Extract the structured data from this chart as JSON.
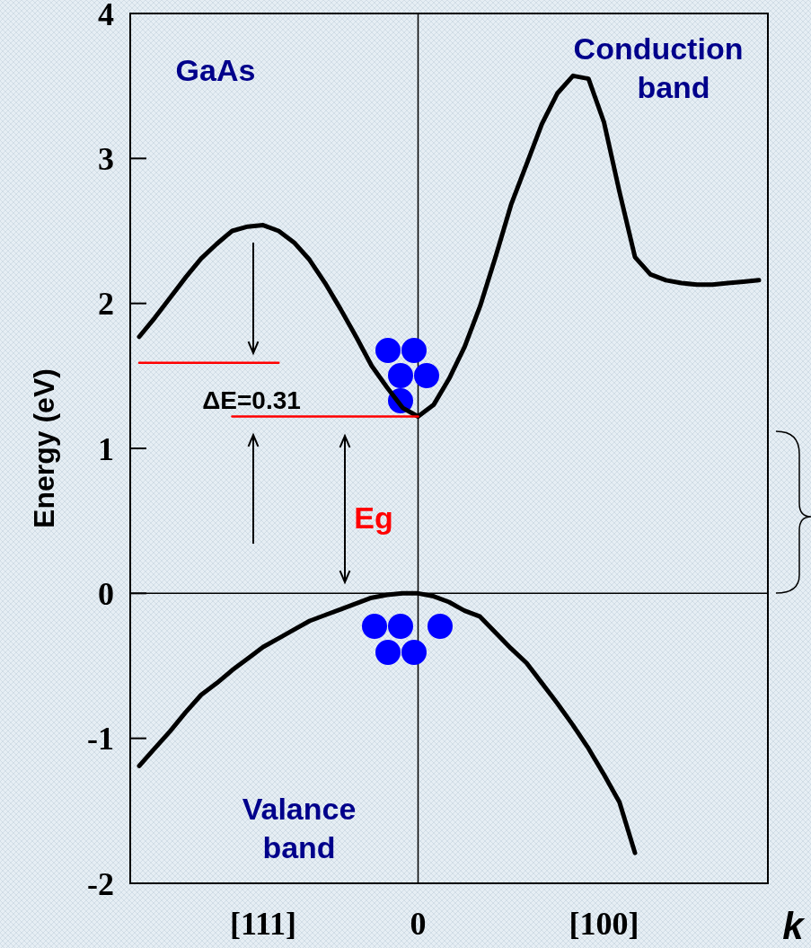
{
  "chart_data": {
    "type": "line",
    "xlabel": "k",
    "ylabel": "Energy (eV)",
    "categories": [
      null,
      null,
      null,
      null,
      null,
      null,
      null,
      null,
      "[111]",
      null,
      null,
      null,
      null,
      null,
      null,
      null,
      null,
      null,
      "0",
      null,
      null,
      null,
      null,
      null,
      null,
      null,
      null,
      null,
      null,
      null,
      "[100]",
      null,
      null,
      null,
      null,
      null,
      null,
      null,
      null,
      null,
      null
    ],
    "ylim": [
      -2,
      4
    ],
    "yticks": [
      -2,
      -1,
      0,
      1,
      2,
      3,
      4
    ],
    "grid": false,
    "line_style": "solid",
    "marker": "none",
    "series": [
      {
        "color": "#000000",
        "values": [
          1.77,
          1.9,
          2.04,
          2.18,
          2.31,
          2.41,
          2.5,
          2.53,
          2.54,
          2.5,
          2.42,
          2.3,
          2.14,
          1.96,
          1.77,
          1.57,
          1.42,
          1.28,
          1.22,
          1.3,
          1.48,
          1.7,
          1.98,
          2.32,
          2.68,
          2.96,
          3.24,
          3.45,
          3.57,
          3.55,
          3.25,
          2.77,
          2.32,
          2.2,
          2.16,
          2.14,
          2.13,
          2.13,
          2.14,
          2.15,
          2.16
        ]
      },
      {
        "color": "#000000",
        "values": [
          -1.19,
          -1.07,
          -0.95,
          -0.82,
          -0.7,
          -0.62,
          -0.53,
          -0.45,
          -0.37,
          -0.31,
          -0.25,
          -0.19,
          -0.15,
          -0.11,
          -0.07,
          -0.03,
          -0.01,
          0,
          0,
          -0.02,
          -0.06,
          -0.12,
          -0.16,
          -0.27,
          -0.38,
          -0.48,
          -0.62,
          -0.76,
          -0.91,
          -1.07,
          -1.25,
          -1.44,
          -1.79,
          null,
          null,
          null,
          null,
          null,
          null,
          null,
          null
        ]
      },
      {
        "color": "#ff0000",
        "values": [
          1.59,
          1.59,
          1.59,
          1.59,
          1.59,
          1.59,
          1.59,
          1.59,
          1.59,
          1.59,
          null,
          null,
          null,
          null,
          null,
          null,
          null,
          null,
          null,
          null,
          null,
          null,
          null,
          null,
          null,
          null,
          null,
          null,
          null,
          null,
          null,
          null,
          null,
          null,
          null,
          null,
          null,
          null,
          null,
          null,
          null
        ]
      },
      {
        "color": "#ff0000",
        "values": [
          null,
          null,
          null,
          null,
          null,
          null,
          1.22,
          1.22,
          1.22,
          1.22,
          1.22,
          1.22,
          1.22,
          1.22,
          1.22,
          1.22,
          1.22,
          1.22,
          1.22,
          null,
          null,
          null,
          null,
          null,
          null,
          null,
          null,
          null,
          null,
          null,
          null,
          null,
          null,
          null,
          null,
          null,
          null,
          null,
          null,
          null,
          null
        ]
      }
    ],
    "ref_lines": [
      {
        "axis": "y",
        "value": 0,
        "color": "#000000"
      },
      {
        "axis": "x",
        "value": "0",
        "color": "#000000"
      }
    ],
    "annotations": [
      "GaAs",
      "Conduction band",
      "Valance band",
      "ΔE=0.31",
      "Eg"
    ]
  }
}
